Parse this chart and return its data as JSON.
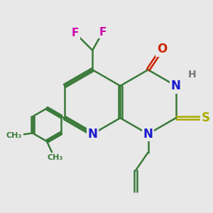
{
  "background_color": "#e8e8e8",
  "bond_color": "#3a7a3a",
  "bond_width": 1.8,
  "atom_colors": {
    "N": "#1a1acc",
    "O": "#cc2200",
    "S": "#aaaa00",
    "F": "#cc00aa",
    "H": "#777777",
    "C": "#3a7a3a"
  },
  "font_size_atom": 12,
  "font_size_small": 10
}
